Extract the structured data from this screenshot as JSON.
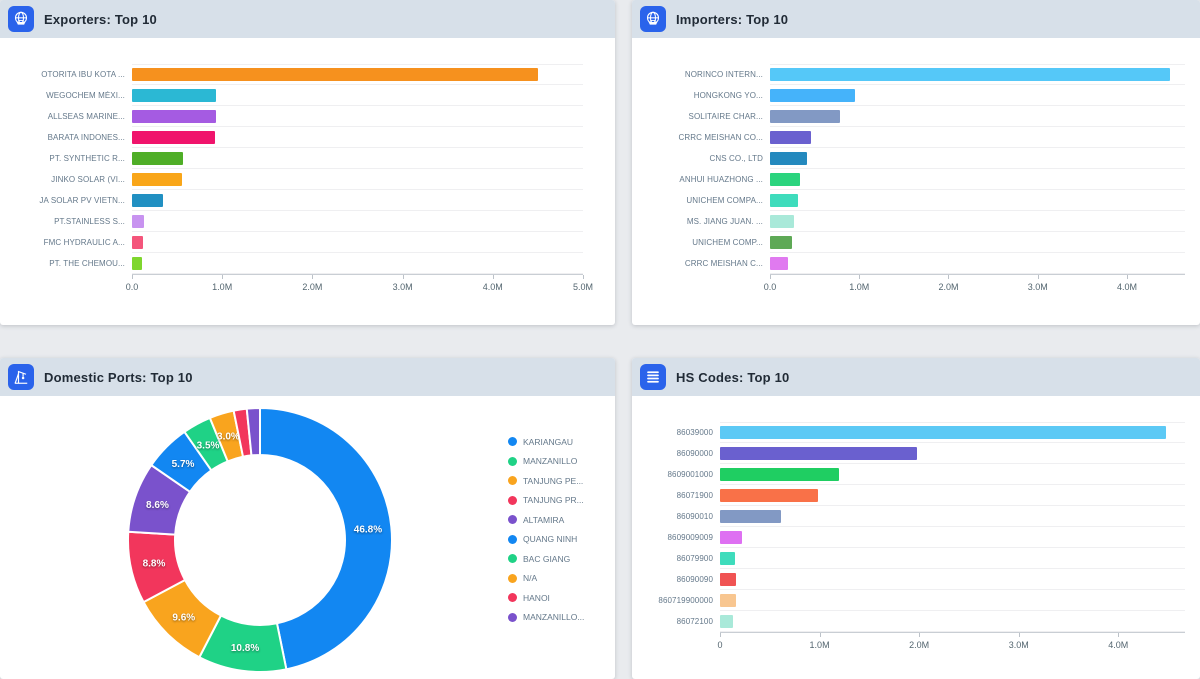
{
  "accent_color": "#2A63EB",
  "header_bg": "#D7E0E9",
  "chart_data": [
    {
      "id": "exporters",
      "type": "bar",
      "orientation": "horizontal",
      "title": "Exporters: Top 10",
      "icon": "globe-ship-icon",
      "categories": [
        "OTORITA IBU KOTA ...",
        "WEGOCHEM MÉXI...",
        "ALLSEAS MARINE...",
        "BARATA INDONES...",
        "PT. SYNTHETIC R...",
        "JINKO SOLAR (VI...",
        "JA SOLAR PV VIETN...",
        "PT.STAINLESS S...",
        "FMC HYDRAULIC A...",
        "PT. THE CHEMOU..."
      ],
      "values": [
        4500000,
        930000,
        930000,
        920000,
        560000,
        550000,
        340000,
        130000,
        120000,
        110000
      ],
      "colors": [
        "#F6911E",
        "#2BB8D4",
        "#A55BE2",
        "#F0146C",
        "#4FAE27",
        "#F9A619",
        "#2190C2",
        "#C893F0",
        "#F4557B",
        "#7FD62E"
      ],
      "xlabel": "",
      "ylabel": "",
      "xlim": [
        0,
        5000000
      ],
      "x_ticks": [
        {
          "value": 0,
          "label": "0.0"
        },
        {
          "value": 1000000,
          "label": "1.0M"
        },
        {
          "value": 2000000,
          "label": "2.0M"
        },
        {
          "value": 3000000,
          "label": "3.0M"
        },
        {
          "value": 4000000,
          "label": "4.0M"
        },
        {
          "value": 5000000,
          "label": "5.0M"
        }
      ],
      "grid": true,
      "legend_position": "none"
    },
    {
      "id": "importers",
      "type": "bar",
      "orientation": "horizontal",
      "title": "Importers: Top 10",
      "icon": "globe-ship-icon",
      "categories": [
        "NORINCO INTERN...",
        "HONGKONG YO...",
        "SOLITAIRE CHAR...",
        "CRRC MEISHAN CO...",
        "CNS CO., LTD",
        "ANHUI HUAZHONG ...",
        "UNICHEM COMPA...",
        "MS. JIANG JUAN. ...",
        "UNICHEM COMP...",
        "CRRC MEISHAN C..."
      ],
      "values": [
        4480000,
        950000,
        780000,
        460000,
        410000,
        340000,
        310000,
        270000,
        250000,
        200000
      ],
      "colors": [
        "#55C8F8",
        "#45B3FA",
        "#8299C4",
        "#6A60CF",
        "#2489BE",
        "#2BD47E",
        "#3EDCBC",
        "#A9E9D9",
        "#5EA956",
        "#E07AF0"
      ],
      "xlabel": "",
      "ylabel": "",
      "xlim": [
        0,
        4650000
      ],
      "x_ticks": [
        {
          "value": 0,
          "label": "0.0"
        },
        {
          "value": 1000000,
          "label": "1.0M"
        },
        {
          "value": 2000000,
          "label": "2.0M"
        },
        {
          "value": 3000000,
          "label": "3.0M"
        },
        {
          "value": 4000000,
          "label": "4.0M"
        }
      ],
      "grid": true,
      "legend_position": "none"
    },
    {
      "id": "domestic-ports",
      "type": "donut",
      "title": "Domestic Ports: Top 10",
      "icon": "port-crane-icon",
      "labels": [
        "KARIANGAU",
        "MANZANILLO",
        "TANJUNG PE...",
        "TANJUNG PR...",
        "ALTAMIRA",
        "QUANG NINH",
        "BAC GIANG",
        "N/A",
        "HANOI",
        "MANZANILLO..."
      ],
      "values_pct": [
        46.8,
        10.8,
        9.6,
        8.8,
        8.6,
        5.7,
        3.5,
        3.0,
        1.6,
        1.6
      ],
      "colors": [
        "#1287F2",
        "#1FD286",
        "#F9A41E",
        "#F2365C",
        "#7A52CC",
        "#1287F2",
        "#1FD286",
        "#F9A41E",
        "#F2365C",
        "#7A52CC"
      ],
      "slice_labels": [
        "46.8%",
        "10.8%",
        "9.6%",
        "8.8%",
        "8.6%",
        "5.7%",
        "3.5%",
        "3.0%",
        "",
        ""
      ],
      "label_threshold_pct": 3.0,
      "legend_position": "right"
    },
    {
      "id": "hs-codes",
      "type": "bar",
      "orientation": "horizontal",
      "title": "HS Codes: Top 10",
      "icon": "list-icon",
      "categories": [
        "86039000",
        "86090000",
        "8609001000",
        "86071900",
        "86090010",
        "8609009009",
        "86079900",
        "86090090",
        "860719900000",
        "86072100"
      ],
      "values": [
        4480000,
        1980000,
        1200000,
        980000,
        610000,
        220000,
        150000,
        160000,
        160000,
        130000
      ],
      "colors": [
        "#5CC9F5",
        "#6A60CF",
        "#1FCE62",
        "#F97148",
        "#8299C4",
        "#DE70F2",
        "#3EDCBC",
        "#F05353",
        "#F8C690",
        "#A9E9D9"
      ],
      "xlabel": "",
      "ylabel": "",
      "xlim": [
        0,
        4670000
      ],
      "x_ticks": [
        {
          "value": 0,
          "label": "0"
        },
        {
          "value": 1000000,
          "label": "1.0M"
        },
        {
          "value": 2000000,
          "label": "2.0M"
        },
        {
          "value": 3000000,
          "label": "3.0M"
        },
        {
          "value": 4000000,
          "label": "4.0M"
        }
      ],
      "grid": true,
      "legend_position": "none"
    }
  ]
}
